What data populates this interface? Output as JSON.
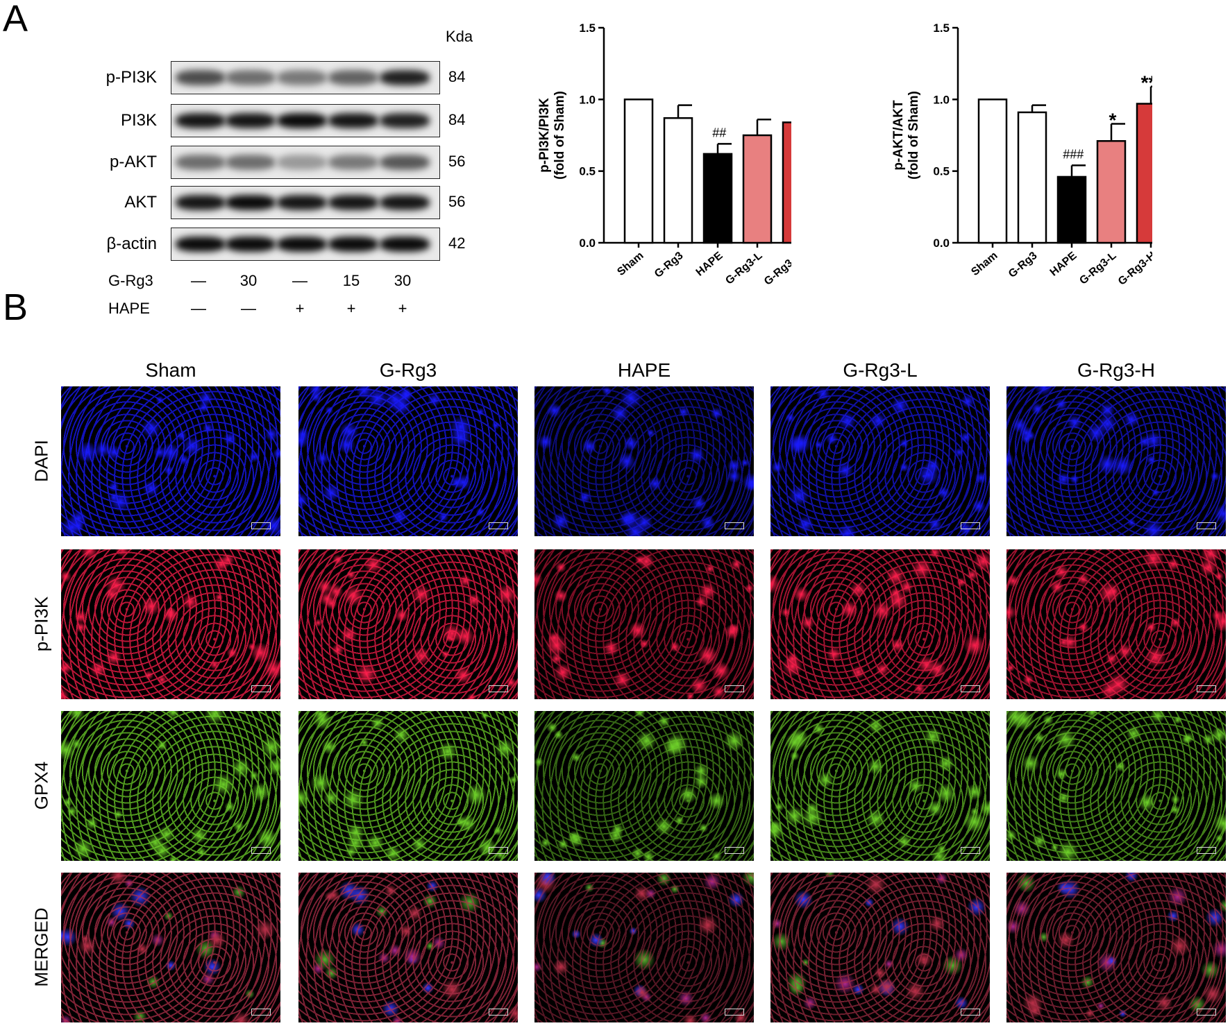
{
  "panel_labels": {
    "a": "A",
    "b": "B"
  },
  "western_blot": {
    "kda_header": "Kda",
    "proteins": [
      {
        "name": "p-PI3K",
        "kda": "84"
      },
      {
        "name": "PI3K",
        "kda": "84"
      },
      {
        "name": "p-AKT",
        "kda": "56"
      },
      {
        "name": "AKT",
        "kda": "56"
      },
      {
        "name": "β-actin",
        "kda": "42"
      }
    ],
    "band_intensity": [
      [
        0.7,
        0.55,
        0.5,
        0.6,
        0.9
      ],
      [
        0.95,
        0.95,
        1.0,
        0.95,
        0.9
      ],
      [
        0.55,
        0.55,
        0.35,
        0.5,
        0.65
      ],
      [
        0.95,
        1.0,
        0.95,
        0.95,
        0.95
      ],
      [
        1.0,
        1.0,
        1.0,
        1.0,
        1.0
      ]
    ],
    "treatments": [
      {
        "name": "G-Rg3",
        "values": [
          "—",
          "30",
          "—",
          "15",
          "30"
        ]
      },
      {
        "name": "HAPE",
        "values": [
          "—",
          "—",
          "+",
          "+",
          "+"
        ]
      }
    ]
  },
  "chart_data": [
    {
      "type": "bar",
      "ylabel_line1": "p-PI3K/PI3K",
      "ylabel_line2": "(fold of Sham)",
      "categories": [
        "Sham",
        "G-Rg3",
        "HAPE",
        "G-Rg3-L",
        "G-Rg3-H"
      ],
      "values": [
        1.0,
        0.87,
        0.62,
        0.75,
        0.84
      ],
      "errors": [
        0.0,
        0.09,
        0.07,
        0.11,
        0.08
      ],
      "annotations": [
        "",
        "",
        "##",
        "",
        "*"
      ],
      "colors": [
        "#ffffff",
        "#ffffff",
        "#000000",
        "#e88080",
        "#d63a3a"
      ],
      "ylim": [
        0,
        1.5
      ],
      "yticks": [
        "0.0",
        "0.5",
        "1.0",
        "1.5"
      ]
    },
    {
      "type": "bar",
      "ylabel_line1": "p-AKT/AKT",
      "ylabel_line2": "(fold of Sham)",
      "categories": [
        "Sham",
        "G-Rg3",
        "HAPE",
        "G-Rg3-L",
        "G-Rg3-H"
      ],
      "values": [
        1.0,
        0.91,
        0.46,
        0.71,
        0.97
      ],
      "errors": [
        0.0,
        0.05,
        0.08,
        0.12,
        0.12
      ],
      "annotations": [
        "",
        "",
        "###",
        "*",
        "***"
      ],
      "colors": [
        "#ffffff",
        "#ffffff",
        "#000000",
        "#e88080",
        "#d63a3a"
      ],
      "ylim": [
        0,
        1.5
      ],
      "yticks": [
        "0.0",
        "0.5",
        "1.0",
        "1.5"
      ]
    }
  ],
  "fluorescence": {
    "columns": [
      "Sham",
      "G-Rg3",
      "HAPE",
      "G-Rg3-L",
      "G-Rg3-H"
    ],
    "rows": [
      {
        "name": "DAPI",
        "color": "#1a1aff"
      },
      {
        "name": "p-PI3K",
        "color": "#ff1f4d"
      },
      {
        "name": "GPX4",
        "color": "#6fd22a"
      },
      {
        "name": "MERGED",
        "color": "#b0304a"
      }
    ],
    "density": [
      0.95,
      0.9,
      0.45,
      0.75,
      0.7
    ]
  }
}
